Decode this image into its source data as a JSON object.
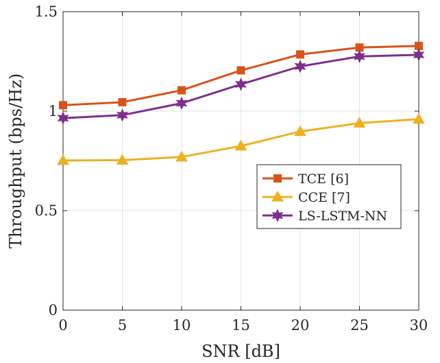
{
  "chart_data": {
    "type": "line",
    "title": "",
    "xlabel": "SNR [dB]",
    "ylabel": "Throughput (bps/Hz)",
    "x": [
      0,
      5,
      10,
      15,
      20,
      25,
      30
    ],
    "xlim": [
      0,
      30
    ],
    "ylim": [
      0,
      1.5
    ],
    "xticks": [
      0,
      5,
      10,
      15,
      20,
      25,
      30
    ],
    "yticks": [
      0,
      0.5,
      1,
      1.5
    ],
    "xtick_labels": [
      "0",
      "5",
      "10",
      "15",
      "20",
      "25",
      "30"
    ],
    "ytick_labels": [
      "0",
      "0.5",
      "1",
      "1.5"
    ],
    "grid": true,
    "legend_position": "center-right",
    "series": [
      {
        "name": "TCE [6]",
        "color": "#D95319",
        "marker": "square",
        "values": [
          1.03,
          1.045,
          1.105,
          1.205,
          1.285,
          1.32,
          1.328
        ]
      },
      {
        "name": "CCE [7]",
        "color": "#EDB120",
        "marker": "triangle",
        "values": [
          0.752,
          0.754,
          0.77,
          0.825,
          0.898,
          0.94,
          0.96
        ]
      },
      {
        "name": "LS-LSTM-NN",
        "color": "#7E2F8E",
        "marker": "hexagram",
        "values": [
          0.965,
          0.98,
          1.04,
          1.135,
          1.225,
          1.275,
          1.283
        ]
      }
    ]
  }
}
